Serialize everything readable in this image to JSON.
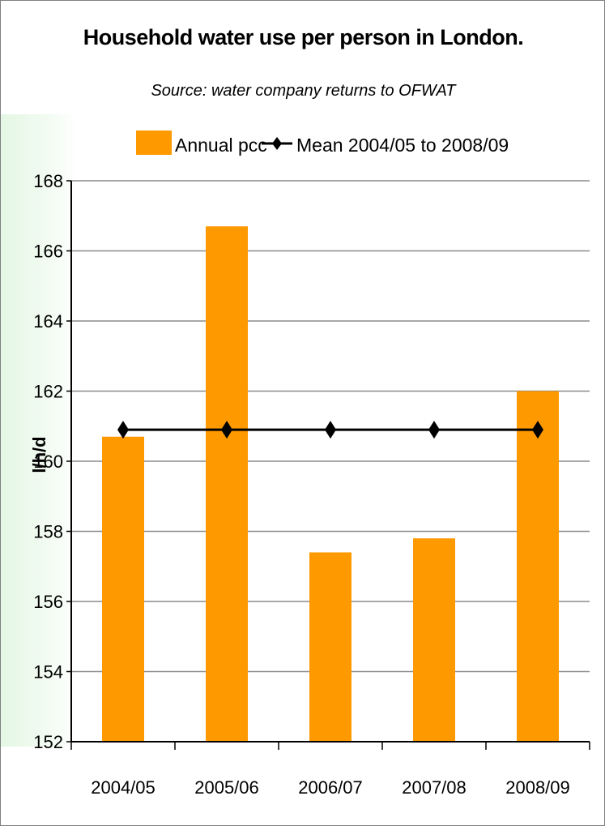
{
  "chart_data": {
    "type": "bar",
    "title": "Household water use per person in London.",
    "subtitle": "Source: water company returns to OFWAT",
    "ylabel": "l/h/d",
    "xlabel": "",
    "categories": [
      "2004/05",
      "2005/06",
      "2006/07",
      "2007/08",
      "2008/09"
    ],
    "series": [
      {
        "name": "Annual pcc",
        "kind": "bar",
        "color": "#FF9900",
        "values": [
          160.7,
          166.7,
          157.4,
          157.8,
          162.0
        ]
      },
      {
        "name": "Mean 2004/05 to 2008/09",
        "kind": "line",
        "color": "#000000",
        "values": [
          160.9,
          160.9,
          160.9,
          160.9,
          160.9
        ]
      }
    ],
    "ylim": [
      152,
      168
    ],
    "yticks": [
      "152",
      "154",
      "156",
      "158",
      "160",
      "162",
      "164",
      "166",
      "168"
    ],
    "grid": true,
    "legend_position": "top"
  }
}
